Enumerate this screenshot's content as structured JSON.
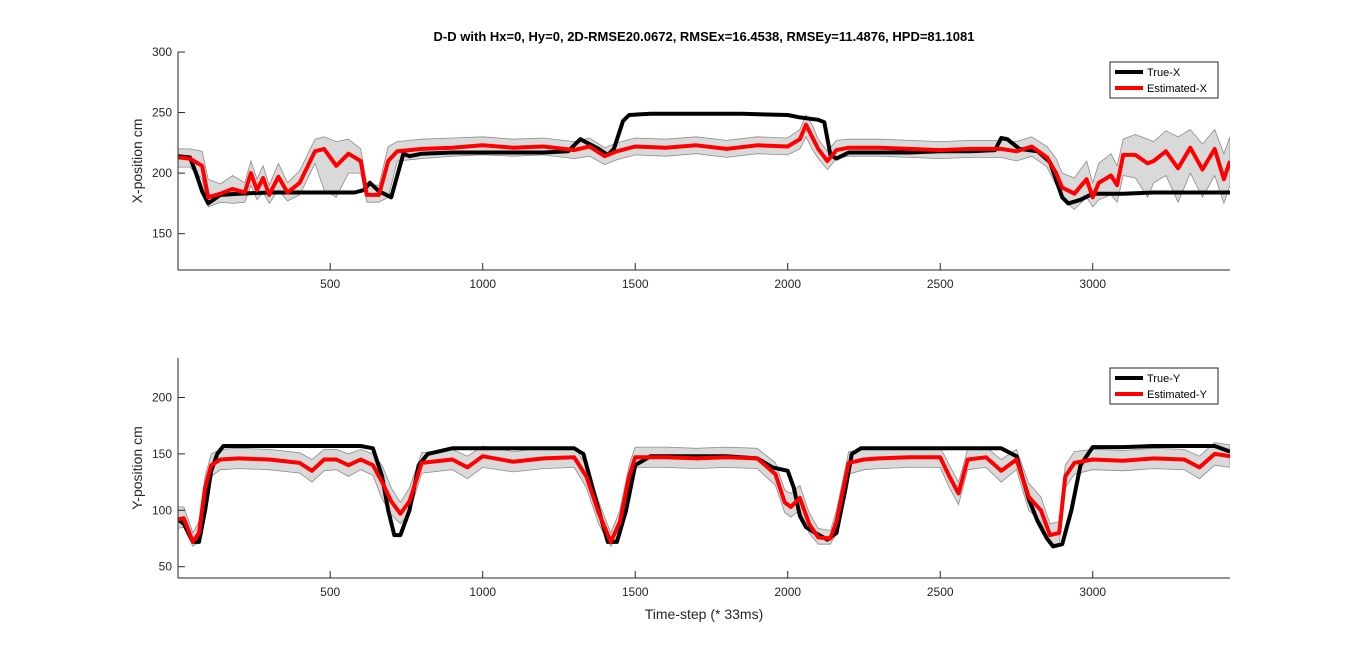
{
  "figure": {
    "title": "D-D with Hx=0, Hy=0, 2D-RMSE20.0672, RMSEx=16.4538, RMSEy=11.4876, HPD=81.1081",
    "xlabel": "Time-step (* 33ms)",
    "colors": {
      "true": "#000000",
      "estimated": "#ff0000",
      "band": "#d9d9d9",
      "band_edge": "#8c8c8c",
      "axis": "#262626"
    }
  },
  "chart_data": [
    {
      "type": "line",
      "title": "D-D with Hx=0, Hy=0, 2D-RMSE20.0672, RMSEx=16.4538, RMSEy=11.4876, HPD=81.1081",
      "xlabel": "",
      "ylabel": "X-position cm",
      "xlim": [
        1,
        3450
      ],
      "ylim": [
        120,
        300
      ],
      "xticks": [
        500,
        1000,
        1500,
        2000,
        2500,
        3000
      ],
      "yticks": [
        150,
        200,
        250,
        300
      ],
      "grid": false,
      "legend_position": "top-right",
      "legend": [
        "True-X",
        "Estimated-X"
      ],
      "series": [
        {
          "name": "True-X",
          "color": "#000000",
          "x": [
            1,
            40,
            60,
            80,
            100,
            140,
            200,
            300,
            400,
            500,
            580,
            610,
            630,
            660,
            700,
            740,
            760,
            800,
            900,
            1000,
            1100,
            1200,
            1280,
            1320,
            1380,
            1410,
            1430,
            1460,
            1480,
            1550,
            1700,
            1850,
            2000,
            2040,
            2100,
            2120,
            2140,
            2160,
            2200,
            2300,
            2400,
            2500,
            2600,
            2680,
            2700,
            2720,
            2760,
            2820,
            2860,
            2900,
            2920,
            2960,
            3000,
            3100,
            3200,
            3300,
            3400,
            3450
          ],
          "values": [
            214,
            213,
            200,
            185,
            175,
            182,
            183,
            184,
            184,
            184,
            184,
            186,
            192,
            185,
            180,
            216,
            214,
            216,
            217,
            217,
            217,
            217,
            218,
            228,
            220,
            215,
            220,
            243,
            248,
            249,
            249,
            249,
            248,
            246,
            244,
            242,
            215,
            212,
            217,
            217,
            217,
            218,
            218,
            219,
            229,
            228,
            220,
            218,
            209,
            180,
            175,
            178,
            183,
            183,
            184,
            184,
            184,
            184
          ]
        },
        {
          "name": "Estimated-X",
          "color": "#ff0000",
          "x": [
            1,
            40,
            80,
            100,
            140,
            180,
            220,
            240,
            260,
            280,
            300,
            330,
            360,
            400,
            450,
            480,
            520,
            560,
            600,
            620,
            660,
            690,
            720,
            760,
            800,
            900,
            1000,
            1100,
            1200,
            1300,
            1350,
            1400,
            1440,
            1500,
            1600,
            1700,
            1800,
            1900,
            2000,
            2040,
            2060,
            2080,
            2100,
            2130,
            2160,
            2200,
            2300,
            2400,
            2500,
            2600,
            2700,
            2750,
            2800,
            2850,
            2880,
            2900,
            2940,
            2980,
            3000,
            3020,
            3060,
            3080,
            3100,
            3140,
            3180,
            3200,
            3240,
            3280,
            3320,
            3360,
            3400,
            3430,
            3450
          ],
          "values": [
            213,
            212,
            206,
            180,
            183,
            187,
            184,
            200,
            186,
            196,
            182,
            197,
            184,
            192,
            218,
            220,
            206,
            216,
            210,
            182,
            182,
            210,
            218,
            219,
            220,
            221,
            223,
            221,
            222,
            219,
            222,
            214,
            218,
            222,
            221,
            223,
            220,
            223,
            222,
            228,
            240,
            230,
            220,
            210,
            219,
            221,
            221,
            220,
            219,
            220,
            220,
            218,
            222,
            213,
            200,
            188,
            183,
            195,
            180,
            192,
            198,
            190,
            215,
            215,
            208,
            210,
            218,
            204,
            221,
            203,
            220,
            195,
            210
          ]
        }
      ],
      "band": {
        "name": "",
        "x": [
          1,
          40,
          80,
          100,
          140,
          180,
          220,
          240,
          260,
          280,
          300,
          330,
          360,
          400,
          450,
          480,
          520,
          560,
          600,
          620,
          660,
          690,
          720,
          760,
          800,
          900,
          1000,
          1100,
          1200,
          1300,
          1350,
          1400,
          1440,
          1500,
          1600,
          1700,
          1800,
          1900,
          2000,
          2040,
          2060,
          2080,
          2100,
          2130,
          2160,
          2200,
          2300,
          2400,
          2500,
          2600,
          2700,
          2750,
          2800,
          2850,
          2880,
          2900,
          2940,
          2980,
          3000,
          3020,
          3060,
          3080,
          3100,
          3140,
          3180,
          3200,
          3240,
          3280,
          3320,
          3360,
          3400,
          3430,
          3450
        ],
        "lower": [
          205,
          205,
          195,
          172,
          176,
          175,
          176,
          190,
          178,
          184,
          175,
          186,
          177,
          182,
          208,
          186,
          180,
          200,
          200,
          176,
          176,
          180,
          210,
          211,
          212,
          214,
          215,
          214,
          215,
          212,
          214,
          207,
          211,
          215,
          214,
          216,
          213,
          216,
          215,
          220,
          230,
          220,
          212,
          203,
          212,
          214,
          214,
          213,
          212,
          213,
          213,
          210,
          214,
          205,
          190,
          178,
          170,
          180,
          172,
          178,
          182,
          176,
          198,
          196,
          180,
          192,
          198,
          176,
          200,
          180,
          198,
          175,
          190
        ],
        "upper": [
          220,
          220,
          218,
          195,
          191,
          198,
          192,
          210,
          195,
          206,
          190,
          208,
          192,
          202,
          228,
          230,
          226,
          228,
          220,
          190,
          190,
          222,
          226,
          227,
          228,
          229,
          230,
          228,
          229,
          226,
          229,
          221,
          225,
          229,
          228,
          230,
          227,
          230,
          229,
          236,
          248,
          240,
          228,
          218,
          227,
          228,
          228,
          227,
          226,
          227,
          227,
          226,
          230,
          222,
          212,
          200,
          196,
          210,
          192,
          208,
          216,
          206,
          228,
          232,
          228,
          226,
          235,
          230,
          236,
          224,
          236,
          216,
          230
        ]
      }
    },
    {
      "type": "line",
      "title": "",
      "xlabel": "Time-step (* 33ms)",
      "ylabel": "Y-position cm",
      "xlim": [
        1,
        3450
      ],
      "ylim": [
        40,
        235
      ],
      "xticks": [
        500,
        1000,
        1500,
        2000,
        2500,
        3000
      ],
      "yticks": [
        50,
        100,
        150,
        200
      ],
      "grid": false,
      "legend_position": "top-right",
      "legend": [
        "True-Y",
        "Estimated-Y"
      ],
      "series": [
        {
          "name": "True-Y",
          "color": "#000000",
          "x": [
            1,
            20,
            50,
            70,
            90,
            110,
            130,
            150,
            200,
            300,
            400,
            500,
            600,
            640,
            670,
            690,
            710,
            730,
            760,
            790,
            820,
            900,
            1000,
            1100,
            1200,
            1300,
            1330,
            1370,
            1410,
            1440,
            1470,
            1500,
            1550,
            1600,
            1700,
            1800,
            1900,
            1950,
            2000,
            2020,
            2040,
            2060,
            2090,
            2130,
            2160,
            2190,
            2210,
            2240,
            2300,
            2400,
            2500,
            2600,
            2700,
            2750,
            2790,
            2820,
            2850,
            2870,
            2900,
            2930,
            2960,
            3000,
            3100,
            3200,
            3300,
            3400,
            3450
          ],
          "values": [
            92,
            88,
            72,
            72,
            100,
            135,
            150,
            157,
            157,
            157,
            157,
            157,
            157,
            155,
            130,
            100,
            78,
            78,
            100,
            140,
            150,
            155,
            155,
            155,
            155,
            155,
            150,
            110,
            72,
            72,
            100,
            140,
            148,
            148,
            148,
            148,
            146,
            138,
            135,
            120,
            95,
            85,
            80,
            74,
            80,
            120,
            150,
            155,
            155,
            155,
            155,
            155,
            155,
            148,
            110,
            90,
            75,
            68,
            70,
            100,
            140,
            156,
            156,
            157,
            157,
            157,
            152
          ]
        },
        {
          "name": "Estimated-Y",
          "color": "#ff0000",
          "x": [
            1,
            20,
            50,
            70,
            90,
            110,
            140,
            200,
            300,
            400,
            440,
            480,
            520,
            560,
            600,
            640,
            670,
            700,
            730,
            760,
            800,
            900,
            950,
            1000,
            1100,
            1200,
            1300,
            1340,
            1380,
            1420,
            1450,
            1480,
            1500,
            1600,
            1700,
            1800,
            1900,
            1960,
            1990,
            2010,
            2040,
            2070,
            2100,
            2140,
            2160,
            2200,
            2250,
            2300,
            2400,
            2500,
            2530,
            2560,
            2590,
            2650,
            2700,
            2750,
            2790,
            2830,
            2860,
            2890,
            2910,
            2940,
            3000,
            3100,
            3200,
            3300,
            3350,
            3400,
            3450
          ],
          "values": [
            92,
            93,
            72,
            80,
            120,
            140,
            145,
            146,
            145,
            142,
            135,
            145,
            145,
            140,
            145,
            140,
            125,
            108,
            97,
            108,
            142,
            145,
            138,
            148,
            143,
            146,
            147,
            130,
            98,
            72,
            90,
            130,
            147,
            147,
            146,
            147,
            146,
            132,
            107,
            103,
            111,
            88,
            76,
            75,
            90,
            142,
            145,
            146,
            147,
            147,
            130,
            115,
            145,
            147,
            135,
            145,
            112,
            100,
            78,
            80,
            130,
            142,
            145,
            144,
            146,
            145,
            138,
            150,
            148
          ]
        }
      ],
      "band": {
        "name": "",
        "x": [
          1,
          20,
          50,
          70,
          90,
          110,
          140,
          200,
          300,
          400,
          440,
          480,
          520,
          560,
          600,
          640,
          670,
          700,
          730,
          760,
          800,
          900,
          950,
          1000,
          1100,
          1200,
          1300,
          1340,
          1380,
          1420,
          1450,
          1480,
          1500,
          1600,
          1700,
          1800,
          1900,
          1960,
          1990,
          2010,
          2040,
          2070,
          2100,
          2140,
          2160,
          2200,
          2250,
          2300,
          2400,
          2500,
          2530,
          2560,
          2590,
          2650,
          2700,
          2750,
          2790,
          2830,
          2860,
          2890,
          2910,
          2940,
          3000,
          3100,
          3200,
          3300,
          3350,
          3400,
          3450
        ],
        "lower": [
          84,
          85,
          68,
          72,
          110,
          130,
          136,
          137,
          136,
          133,
          125,
          135,
          136,
          130,
          136,
          131,
          110,
          96,
          88,
          98,
          133,
          136,
          128,
          138,
          134,
          137,
          138,
          120,
          88,
          68,
          80,
          120,
          138,
          138,
          137,
          138,
          137,
          122,
          98,
          94,
          100,
          80,
          70,
          70,
          80,
          132,
          136,
          137,
          138,
          138,
          120,
          105,
          136,
          138,
          125,
          136,
          100,
          90,
          70,
          70,
          120,
          132,
          136,
          135,
          137,
          136,
          128,
          140,
          138
        ],
        "upper": [
          103,
          103,
          80,
          90,
          130,
          150,
          154,
          155,
          154,
          151,
          145,
          154,
          154,
          150,
          154,
          150,
          140,
          120,
          107,
          120,
          151,
          154,
          148,
          157,
          152,
          155,
          156,
          140,
          108,
          80,
          100,
          140,
          156,
          156,
          155,
          156,
          155,
          142,
          118,
          115,
          122,
          98,
          84,
          82,
          100,
          152,
          154,
          155,
          156,
          156,
          140,
          125,
          154,
          156,
          145,
          154,
          124,
          112,
          88,
          90,
          140,
          152,
          154,
          153,
          155,
          154,
          148,
          160,
          158
        ]
      }
    }
  ]
}
